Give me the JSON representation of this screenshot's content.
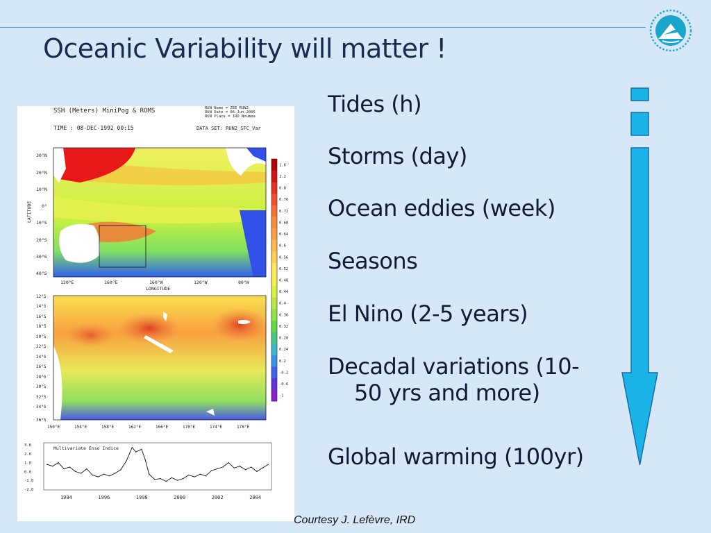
{
  "slide": {
    "title": "Oceanic Variability will matter !",
    "credit": "Courtesy J. Lefèvre, IRD",
    "scales": [
      {
        "label": "Tides (h)"
      },
      {
        "label": "Storms (day)"
      },
      {
        "label": "Ocean eddies (week)"
      },
      {
        "label": "Seasons"
      },
      {
        "label": "El Nino (2-5 years)"
      },
      {
        "label": "Decadal variations (10-",
        "label2": "50 yrs and more)"
      },
      {
        "label": "Global warming (100yr)"
      }
    ],
    "colors": {
      "background": "#d6e8f8",
      "title": "#1a2b50",
      "arrow": "#1ab4e8",
      "rule": "#4aa8d8"
    },
    "logo_icon": "ird-logo-icon",
    "arrow_icon": "down-arrow-icon"
  },
  "figure": {
    "header": {
      "title": "SSH (Meters) MiniPog & ROMS",
      "time": "TIME : 08-DEC-1992 00:15",
      "run_name": "RUN Name = ZEE RUN2",
      "run_date": "RUN Date = 06-Jun-2005",
      "run_place": "RUN Place = IRD Noumea",
      "dataset": "DATA SET: RUN2_SFC_Var"
    },
    "map1": {
      "lat_ticks": [
        "30°N",
        "20°N",
        "10°N",
        "0°",
        "10°S",
        "20°S",
        "30°S",
        "40°S"
      ],
      "lon_ticks": [
        "120°E",
        "160°E",
        "160°W",
        "120°W",
        "80°W"
      ],
      "ylabel": "LATITUDE",
      "xlabel": "LONGITUDE"
    },
    "map2": {
      "lat_ticks": [
        "12°S",
        "14°S",
        "16°S",
        "18°S",
        "20°S",
        "22°S",
        "24°S",
        "26°S",
        "28°S",
        "30°S",
        "32°S",
        "34°S",
        "36°S"
      ],
      "lon_ticks": [
        "150°E",
        "154°E",
        "158°E",
        "162°E",
        "166°E",
        "170°E",
        "174°E",
        "178°E"
      ]
    },
    "colorbar": {
      "labels": [
        "1.6",
        "1.2",
        "0.8",
        "0.76",
        "0.72",
        "0.68",
        "0.64",
        "0.6",
        "0.56",
        "0.52",
        "0.48",
        "0.44",
        "0.4",
        "0.36",
        "0.32",
        "0.28",
        "0.24",
        "0.2",
        "-0.2",
        "-0.6",
        "-1"
      ],
      "colors": [
        "#b40000",
        "#d41010",
        "#e83020",
        "#f05028",
        "#f57030",
        "#f88a38",
        "#fba040",
        "#fcb84a",
        "#fdd050",
        "#fce858",
        "#f0f050",
        "#d8f040",
        "#b8e840",
        "#90e040",
        "#60d840",
        "#40c880",
        "#38b8c8",
        "#3890e8",
        "#4060f0",
        "#6030e0",
        "#8820d0"
      ]
    },
    "index_chart": {
      "title": "Multivariate Enso Indice",
      "y_ticks": [
        "3.0",
        "2.0",
        "1.0",
        "0.0",
        "-1.0",
        "-2.0"
      ],
      "x_ticks": [
        "1994",
        "1996",
        "1998",
        "2000",
        "2002",
        "2004"
      ],
      "ylim": [
        -2.0,
        3.0
      ],
      "xlim": [
        1992.9,
        2004.8
      ],
      "x": [
        1993.0,
        1993.3,
        1993.6,
        1993.9,
        1994.2,
        1994.5,
        1994.8,
        1995.1,
        1995.4,
        1995.7,
        1996.0,
        1996.3,
        1996.6,
        1996.9,
        1997.2,
        1997.5,
        1997.7,
        1998.0,
        1998.2,
        1998.4,
        1998.7,
        1999.0,
        1999.3,
        1999.6,
        1999.9,
        2000.2,
        2000.5,
        2000.8,
        2001.1,
        2001.4,
        2001.7,
        2002.0,
        2002.3,
        2002.6,
        2002.9,
        2003.2,
        2003.5,
        2003.8,
        2004.1,
        2004.4,
        2004.7
      ],
      "y": [
        0.8,
        0.6,
        1.0,
        0.3,
        0.5,
        0.0,
        -0.2,
        0.3,
        -0.4,
        -0.6,
        -0.3,
        -0.5,
        -0.2,
        0.2,
        1.2,
        2.7,
        2.2,
        2.5,
        1.3,
        -0.3,
        -0.9,
        -0.8,
        -1.1,
        -0.7,
        -1.0,
        -0.8,
        -0.4,
        -0.6,
        -0.3,
        -0.5,
        0.1,
        0.3,
        0.5,
        1.0,
        0.4,
        0.6,
        0.2,
        0.5,
        0.0,
        0.4,
        0.8
      ]
    }
  }
}
